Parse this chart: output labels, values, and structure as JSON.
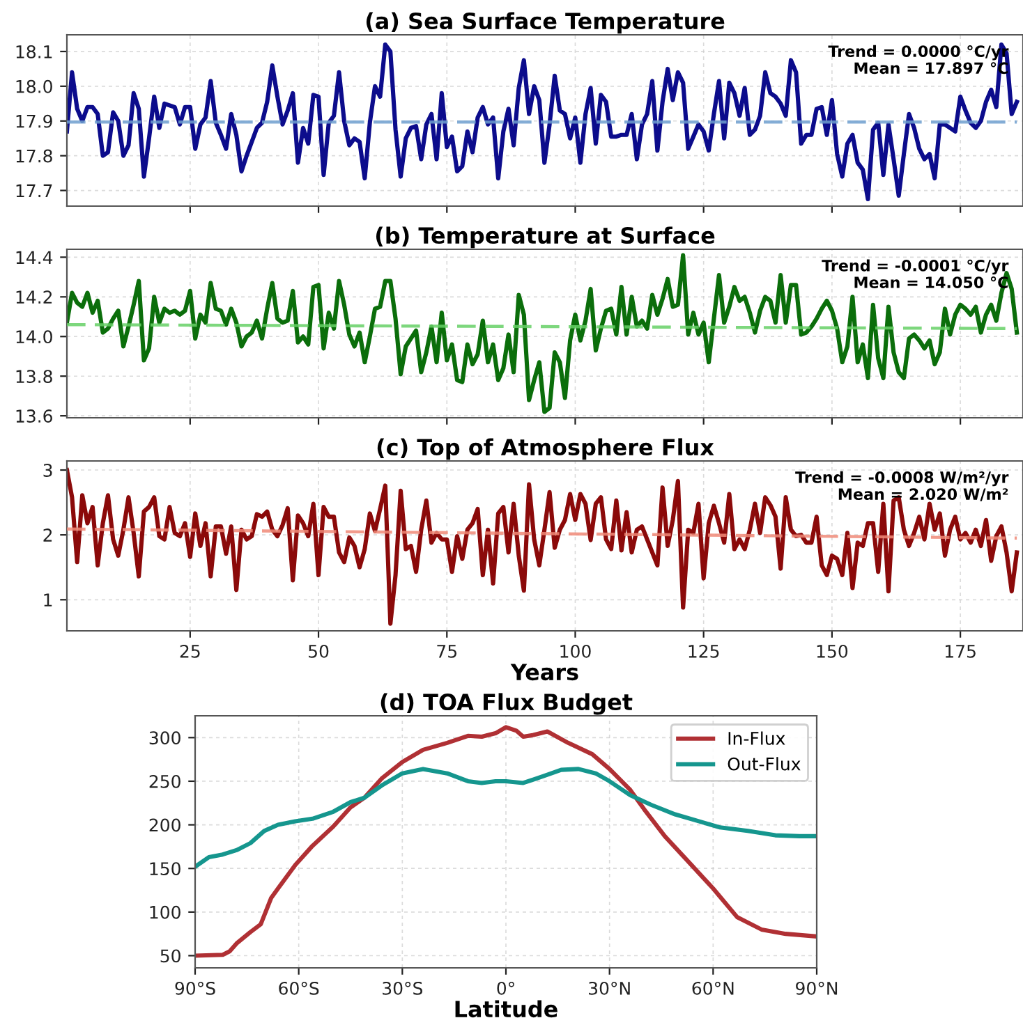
{
  "chart_data": [
    {
      "type": "line",
      "title": "(a) Sea Surface Temperature",
      "annotations": [
        "Trend = 0.0000 °C/yr\nMean = 17.897 °C"
      ],
      "x": [
        1,
        2,
        3,
        4,
        5,
        6,
        7,
        8,
        9,
        10,
        11,
        12,
        13,
        14,
        15,
        16,
        17,
        18,
        19,
        20,
        21,
        22,
        23,
        24,
        25,
        26,
        27,
        28,
        29,
        30,
        31,
        32,
        33,
        34,
        35,
        36,
        37,
        38,
        39,
        40,
        41,
        42,
        43,
        44,
        45,
        46,
        47,
        48,
        49,
        50,
        51,
        52,
        53,
        54,
        55,
        56,
        57,
        58,
        59,
        60,
        61,
        62,
        63,
        64,
        65,
        66,
        67,
        68,
        69,
        70,
        71,
        72,
        73,
        74,
        75,
        76,
        77,
        78,
        79,
        80,
        81,
        82,
        83,
        84,
        85,
        86,
        87,
        88,
        89,
        90,
        91,
        92,
        93,
        94,
        95,
        96,
        97,
        98,
        99,
        100,
        101,
        102,
        103,
        104,
        105,
        106,
        107,
        108,
        109,
        110,
        111,
        112,
        113,
        114,
        115,
        116,
        117,
        118,
        119,
        120,
        121,
        122,
        123,
        124,
        125,
        126,
        127,
        128,
        129,
        130,
        131,
        132,
        133,
        134,
        135,
        136,
        137,
        138,
        139,
        140,
        141,
        142,
        143,
        144,
        145,
        146,
        147,
        148,
        149,
        150,
        151,
        152,
        153,
        154,
        155,
        156,
        157,
        158,
        159,
        160,
        161,
        162,
        163,
        164,
        165,
        166,
        167,
        168,
        169,
        170,
        171,
        172,
        173,
        174,
        175,
        176,
        177,
        178,
        179,
        180,
        181,
        182,
        183,
        184,
        185,
        186
      ],
      "series": [
        {
          "color": "#0c0c8c",
          "values": [
            17.87,
            18.04,
            17.935,
            17.9,
            17.94,
            17.94,
            17.92,
            17.8,
            17.81,
            17.925,
            17.9,
            17.8,
            17.83,
            17.98,
            17.935,
            17.74,
            17.85,
            17.97,
            17.88,
            17.95,
            17.945,
            17.94,
            17.89,
            17.94,
            17.94,
            17.82,
            17.89,
            17.91,
            18.015,
            17.895,
            17.86,
            17.82,
            17.92,
            17.86,
            17.755,
            17.8,
            17.84,
            17.88,
            17.895,
            17.955,
            18.06,
            17.97,
            17.89,
            17.93,
            17.98,
            17.78,
            17.88,
            17.835,
            17.975,
            17.97,
            17.745,
            17.895,
            17.915,
            18.04,
            17.9,
            17.83,
            17.85,
            17.84,
            17.735,
            17.895,
            18.0,
            17.97,
            18.12,
            18.1,
            17.875,
            17.74,
            17.85,
            17.88,
            17.885,
            17.79,
            17.89,
            17.92,
            17.79,
            17.98,
            17.825,
            17.855,
            17.755,
            17.77,
            17.87,
            17.81,
            17.91,
            17.94,
            17.89,
            17.91,
            17.735,
            17.87,
            17.935,
            17.83,
            17.995,
            18.075,
            17.92,
            18.0,
            17.96,
            17.78,
            17.89,
            18.03,
            17.93,
            17.92,
            17.85,
            17.91,
            17.78,
            17.92,
            17.995,
            17.835,
            17.975,
            17.955,
            17.855,
            17.855,
            17.86,
            17.86,
            17.92,
            17.79,
            17.89,
            17.92,
            18.015,
            17.815,
            17.955,
            18.05,
            17.96,
            18.04,
            18.01,
            17.82,
            17.855,
            17.89,
            17.87,
            17.815,
            17.92,
            18.015,
            17.85,
            18.01,
            17.98,
            17.915,
            17.995,
            17.86,
            17.875,
            17.915,
            18.04,
            17.98,
            17.97,
            17.95,
            17.915,
            18.075,
            18.04,
            17.835,
            17.86,
            17.86,
            17.935,
            17.94,
            17.86,
            17.96,
            17.805,
            17.74,
            17.835,
            17.86,
            17.78,
            17.76,
            17.675,
            17.875,
            17.895,
            17.745,
            17.89,
            17.79,
            17.685,
            17.805,
            17.92,
            17.88,
            17.82,
            17.79,
            17.805,
            17.735,
            17.89,
            17.89,
            17.88,
            17.87,
            17.97,
            17.93,
            17.895,
            17.88,
            17.9,
            17.955,
            17.99,
            17.94,
            18.12,
            18.095,
            17.92,
            17.955
          ]
        },
        {
          "type": "line",
          "x": [
            1,
            186
          ],
          "values": [
            17.897,
            17.897
          ],
          "color": "#6f9fcf",
          "line_style": "dashed"
        }
      ],
      "xlim": [
        1,
        187.2
      ],
      "ylim": [
        17.655,
        18.148
      ],
      "yticks": [
        17.7,
        17.8,
        17.9,
        {
          "value": 18.0,
          "label": "18.0"
        },
        18.1
      ],
      "xticks": [
        {
          "value": 25,
          "label": null
        },
        {
          "value": 50,
          "label": null
        },
        {
          "value": 75,
          "label": null
        },
        {
          "value": 100,
          "label": null
        },
        {
          "value": 125,
          "label": null
        },
        {
          "value": 150,
          "label": null
        },
        {
          "value": 175,
          "label": null
        }
      ],
      "tick_labels": "y",
      "grid": true,
      "line_style": "solid"
    },
    {
      "type": "line",
      "title": "(b) Temperature at Surface",
      "annotations": [
        "Trend = -0.0001 °C/yr\nMean = 14.050 °C"
      ],
      "x": [
        1,
        2,
        3,
        4,
        5,
        6,
        7,
        8,
        9,
        10,
        11,
        12,
        13,
        14,
        15,
        16,
        17,
        18,
        19,
        20,
        21,
        22,
        23,
        24,
        25,
        26,
        27,
        28,
        29,
        30,
        31,
        32,
        33,
        34,
        35,
        36,
        37,
        38,
        39,
        40,
        41,
        42,
        43,
        44,
        45,
        46,
        47,
        48,
        49,
        50,
        51,
        52,
        53,
        54,
        55,
        56,
        57,
        58,
        59,
        60,
        61,
        62,
        63,
        64,
        65,
        66,
        67,
        68,
        69,
        70,
        71,
        72,
        73,
        74,
        75,
        76,
        77,
        78,
        79,
        80,
        81,
        82,
        83,
        84,
        85,
        86,
        87,
        88,
        89,
        90,
        91,
        92,
        93,
        94,
        95,
        96,
        97,
        98,
        99,
        100,
        101,
        102,
        103,
        104,
        105,
        106,
        107,
        108,
        109,
        110,
        111,
        112,
        113,
        114,
        115,
        116,
        117,
        118,
        119,
        120,
        121,
        122,
        123,
        124,
        125,
        126,
        127,
        128,
        129,
        130,
        131,
        132,
        133,
        134,
        135,
        136,
        137,
        138,
        139,
        140,
        141,
        142,
        143,
        144,
        145,
        146,
        147,
        148,
        149,
        150,
        151,
        152,
        153,
        154,
        155,
        156,
        157,
        158,
        159,
        160,
        161,
        162,
        163,
        164,
        165,
        166,
        167,
        168,
        169,
        170,
        171,
        172,
        173,
        174,
        175,
        176,
        177,
        178,
        179,
        180,
        181,
        182,
        183,
        184,
        185,
        186
      ],
      "series": [
        {
          "color": "#0b6e0b",
          "values": [
            14.07,
            14.22,
            14.17,
            14.15,
            14.22,
            14.12,
            14.18,
            14.02,
            14.04,
            14.09,
            14.13,
            13.95,
            14.05,
            14.16,
            14.28,
            13.88,
            13.94,
            14.2,
            14.07,
            14.14,
            14.12,
            14.13,
            14.11,
            14.13,
            14.23,
            13.99,
            14.11,
            14.07,
            14.27,
            14.14,
            14.13,
            14.06,
            14.14,
            14.07,
            13.95,
            14.0,
            14.02,
            14.08,
            13.99,
            14.14,
            14.27,
            14.09,
            14.07,
            14.08,
            14.23,
            13.97,
            14.0,
            13.96,
            14.25,
            14.26,
            13.94,
            14.12,
            14.04,
            14.28,
            14.16,
            14.01,
            13.95,
            14.02,
            13.87,
            14.0,
            14.14,
            14.15,
            14.28,
            14.28,
            14.09,
            13.81,
            13.95,
            13.99,
            14.03,
            13.82,
            13.92,
            14.05,
            13.87,
            14.12,
            13.88,
            13.96,
            13.78,
            13.77,
            13.96,
            13.86,
            13.91,
            14.08,
            13.87,
            13.96,
            13.78,
            13.84,
            14.01,
            13.82,
            14.21,
            14.11,
            13.68,
            13.78,
            13.87,
            13.62,
            13.64,
            13.92,
            13.87,
            13.69,
            13.98,
            14.11,
            13.98,
            14.08,
            14.24,
            13.93,
            14.04,
            14.13,
            14.14,
            14.01,
            14.25,
            14.01,
            14.2,
            14.05,
            14.08,
            14.04,
            14.21,
            14.11,
            14.19,
            14.29,
            14.15,
            14.16,
            14.41,
            14.01,
            14.12,
            14.01,
            14.07,
            13.87,
            14.09,
            14.31,
            14.07,
            14.15,
            14.25,
            14.18,
            14.2,
            14.12,
            14.02,
            14.13,
            14.2,
            14.18,
            14.07,
            14.31,
            14.07,
            14.26,
            14.26,
            14.01,
            14.02,
            14.05,
            14.09,
            14.14,
            14.18,
            14.13,
            14.04,
            13.87,
            13.95,
            14.2,
            13.87,
            13.96,
            13.79,
            14.16,
            13.89,
            13.79,
            14.15,
            13.92,
            13.82,
            13.79,
            13.99,
            14.01,
            13.98,
            13.94,
            13.98,
            13.86,
            13.92,
            14.14,
            14.01,
            14.11,
            14.16,
            14.14,
            14.11,
            14.15,
            14.02,
            14.11,
            14.16,
            14.08,
            14.22,
            14.32,
            14.24,
            14.02
          ]
        },
        {
          "type": "line",
          "x": [
            1,
            186
          ],
          "values": [
            14.06,
            14.04
          ],
          "color": "#66d066",
          "line_style": "dashed"
        }
      ],
      "xlim": [
        1,
        187.2
      ],
      "ylim": [
        13.59,
        14.44
      ],
      "yticks": [
        13.6,
        13.8,
        {
          "value": 14.0,
          "label": "14.0"
        },
        14.2,
        14.4
      ],
      "xticks": [
        {
          "value": 25,
          "label": null
        },
        {
          "value": 50,
          "label": null
        },
        {
          "value": 75,
          "label": null
        },
        {
          "value": 100,
          "label": null
        },
        {
          "value": 125,
          "label": null
        },
        {
          "value": 150,
          "label": null
        },
        {
          "value": 175,
          "label": null
        }
      ],
      "tick_labels": "y",
      "grid": true,
      "line_style": "solid"
    },
    {
      "type": "line",
      "title": "(c) Top of Atmosphere Flux",
      "xlabel": "Years",
      "annotations": [
        "Trend = -0.0008 W/m²/yr\nMean = 2.020 W/m²"
      ],
      "x": [
        1,
        2,
        3,
        4,
        5,
        6,
        7,
        8,
        9,
        10,
        11,
        12,
        13,
        14,
        15,
        16,
        17,
        18,
        19,
        20,
        21,
        22,
        23,
        24,
        25,
        26,
        27,
        28,
        29,
        30,
        31,
        32,
        33,
        34,
        35,
        36,
        37,
        38,
        39,
        40,
        41,
        42,
        43,
        44,
        45,
        46,
        47,
        48,
        49,
        50,
        51,
        52,
        53,
        54,
        55,
        56,
        57,
        58,
        59,
        60,
        61,
        62,
        63,
        64,
        65,
        66,
        67,
        68,
        69,
        70,
        71,
        72,
        73,
        74,
        75,
        76,
        77,
        78,
        79,
        80,
        81,
        82,
        83,
        84,
        85,
        86,
        87,
        88,
        89,
        90,
        91,
        92,
        93,
        94,
        95,
        96,
        97,
        98,
        99,
        100,
        101,
        102,
        103,
        104,
        105,
        106,
        107,
        108,
        109,
        110,
        111,
        112,
        113,
        114,
        115,
        116,
        117,
        118,
        119,
        120,
        121,
        122,
        123,
        124,
        125,
        126,
        127,
        128,
        129,
        130,
        131,
        132,
        133,
        134,
        135,
        136,
        137,
        138,
        139,
        140,
        141,
        142,
        143,
        144,
        145,
        146,
        147,
        148,
        149,
        150,
        151,
        152,
        153,
        154,
        155,
        156,
        157,
        158,
        159,
        160,
        161,
        162,
        163,
        164,
        165,
        166,
        167,
        168,
        169,
        170,
        171,
        172,
        173,
        174,
        175,
        176,
        177,
        178,
        179,
        180,
        181,
        182,
        183,
        184,
        185,
        186
      ],
      "series": [
        {
          "color": "#8b0a0a",
          "values": [
            3.0,
            2.58,
            1.58,
            2.61,
            2.18,
            2.43,
            1.53,
            2.18,
            2.61,
            1.93,
            1.68,
            2.08,
            2.58,
            2.03,
            1.36,
            2.36,
            2.43,
            2.58,
            1.98,
            1.93,
            2.43,
            2.03,
            1.98,
            2.18,
            1.66,
            2.33,
            1.83,
            2.18,
            1.36,
            2.13,
            2.13,
            1.71,
            2.13,
            1.15,
            2.08,
            1.93,
            1.98,
            2.32,
            2.28,
            2.36,
            2.08,
            1.98,
            2.15,
            2.41,
            1.3,
            2.3,
            2.18,
            1.98,
            2.48,
            1.38,
            2.43,
            2.28,
            2.28,
            1.73,
            1.58,
            1.96,
            1.83,
            1.5,
            1.78,
            2.33,
            2.06,
            2.4,
            2.76,
            0.63,
            1.38,
            2.68,
            1.78,
            1.83,
            1.43,
            2.08,
            2.53,
            1.88,
            2.03,
            1.93,
            1.93,
            1.43,
            1.98,
            1.63,
            2.08,
            2.18,
            2.4,
            1.38,
            2.08,
            1.25,
            2.33,
            2.43,
            1.73,
            2.48,
            1.68,
            1.14,
            2.78,
            1.93,
            1.53,
            2.08,
            2.66,
            1.8,
            2.08,
            2.23,
            2.63,
            2.23,
            2.63,
            2.48,
            1.92,
            2.48,
            2.58,
            1.93,
            1.78,
            2.53,
            1.76,
            2.35,
            1.73,
            2.08,
            2.13,
            1.93,
            1.73,
            1.53,
            2.73,
            1.83,
            2.23,
            2.83,
            0.88,
            2.08,
            2.03,
            2.48,
            1.33,
            2.18,
            2.45,
            2.18,
            1.88,
            2.63,
            1.78,
            1.93,
            1.78,
            2.08,
            2.48,
            2.03,
            2.58,
            2.46,
            2.28,
            1.48,
            2.58,
            2.08,
            1.98,
            2.0,
            1.88,
            1.88,
            2.28,
            1.53,
            1.38,
            1.68,
            1.63,
            1.38,
            2.03,
            1.18,
            1.88,
            1.83,
            2.18,
            2.18,
            1.43,
            2.48,
            1.13,
            2.53,
            2.58,
            2.08,
            1.83,
            2.03,
            2.28,
            1.93,
            2.48,
            2.08,
            2.33,
            1.68,
            2.08,
            2.28,
            1.93,
            2.03,
            1.88,
            2.08,
            1.83,
            2.23,
            1.6,
            1.98,
            2.13,
            1.73,
            1.13,
            1.73
          ]
        },
        {
          "type": "line",
          "x": [
            1,
            186
          ],
          "values": [
            2.09,
            1.95
          ],
          "color": "#f08a78",
          "line_style": "dashed"
        }
      ],
      "xlim": [
        1,
        187.2
      ],
      "ylim": [
        0.52,
        3.14
      ],
      "yticks": [
        1,
        2,
        3
      ],
      "xticks": [
        25,
        50,
        75,
        100,
        125,
        150,
        175
      ],
      "grid": true,
      "line_style": "solid"
    },
    {
      "type": "line",
      "title": "(d) TOA Flux Budget",
      "xlabel": "Latitude",
      "series": [
        {
          "name": "In-Flux",
          "color": "#b03034",
          "x": [
            -90,
            -82,
            -80,
            -78,
            -74,
            -71,
            -68,
            -66,
            -61,
            -56,
            -50,
            -45,
            -41,
            -36,
            -30,
            -24,
            -17,
            -11,
            -7,
            -3,
            0,
            3,
            5,
            8,
            12,
            18,
            25,
            30,
            36,
            40,
            46,
            53,
            60,
            67,
            74,
            81,
            90
          ],
          "values": [
            50,
            51,
            55,
            64,
            77,
            86,
            116,
            127,
            154,
            176,
            198,
            220,
            231,
            253,
            272,
            286,
            294,
            302,
            301,
            305,
            312,
            308,
            301,
            303,
            307,
            294,
            281,
            264,
            240,
            218,
            187,
            157,
            127,
            94,
            80,
            75,
            72
          ]
        },
        {
          "name": "Out-Flux",
          "color": "#15968e",
          "x": [
            -90,
            -86,
            -82,
            -78,
            -74,
            -70,
            -66,
            -61,
            -56,
            -50,
            -45,
            -41,
            -36,
            -30,
            -24,
            -17,
            -11,
            -7,
            -3,
            0,
            5,
            11,
            16,
            21,
            26,
            30,
            36,
            42,
            49,
            56,
            62,
            70,
            78,
            85,
            90
          ],
          "values": [
            152,
            163,
            166,
            171,
            179,
            193,
            200,
            204,
            207,
            215,
            226,
            231,
            245,
            259,
            264,
            259,
            250,
            248,
            250,
            250,
            248,
            256,
            263,
            264,
            259,
            250,
            234,
            223,
            212,
            204,
            197,
            193,
            188,
            187,
            187
          ]
        }
      ],
      "xlim": [
        -90,
        90
      ],
      "ylim": [
        36,
        325
      ],
      "xticks": [
        {
          "value": -90,
          "label": "90°S"
        },
        {
          "value": -60,
          "label": "60°S"
        },
        {
          "value": -30,
          "label": "30°S"
        },
        {
          "value": 0,
          "label": "0°"
        },
        {
          "value": 30,
          "label": "30°N"
        },
        {
          "value": 60,
          "label": "60°N"
        },
        {
          "value": 90,
          "label": "90°N"
        }
      ],
      "yticks": [
        50,
        100,
        150,
        200,
        250,
        300
      ],
      "grid": true,
      "legend": "top right",
      "line_style": "solid"
    }
  ]
}
